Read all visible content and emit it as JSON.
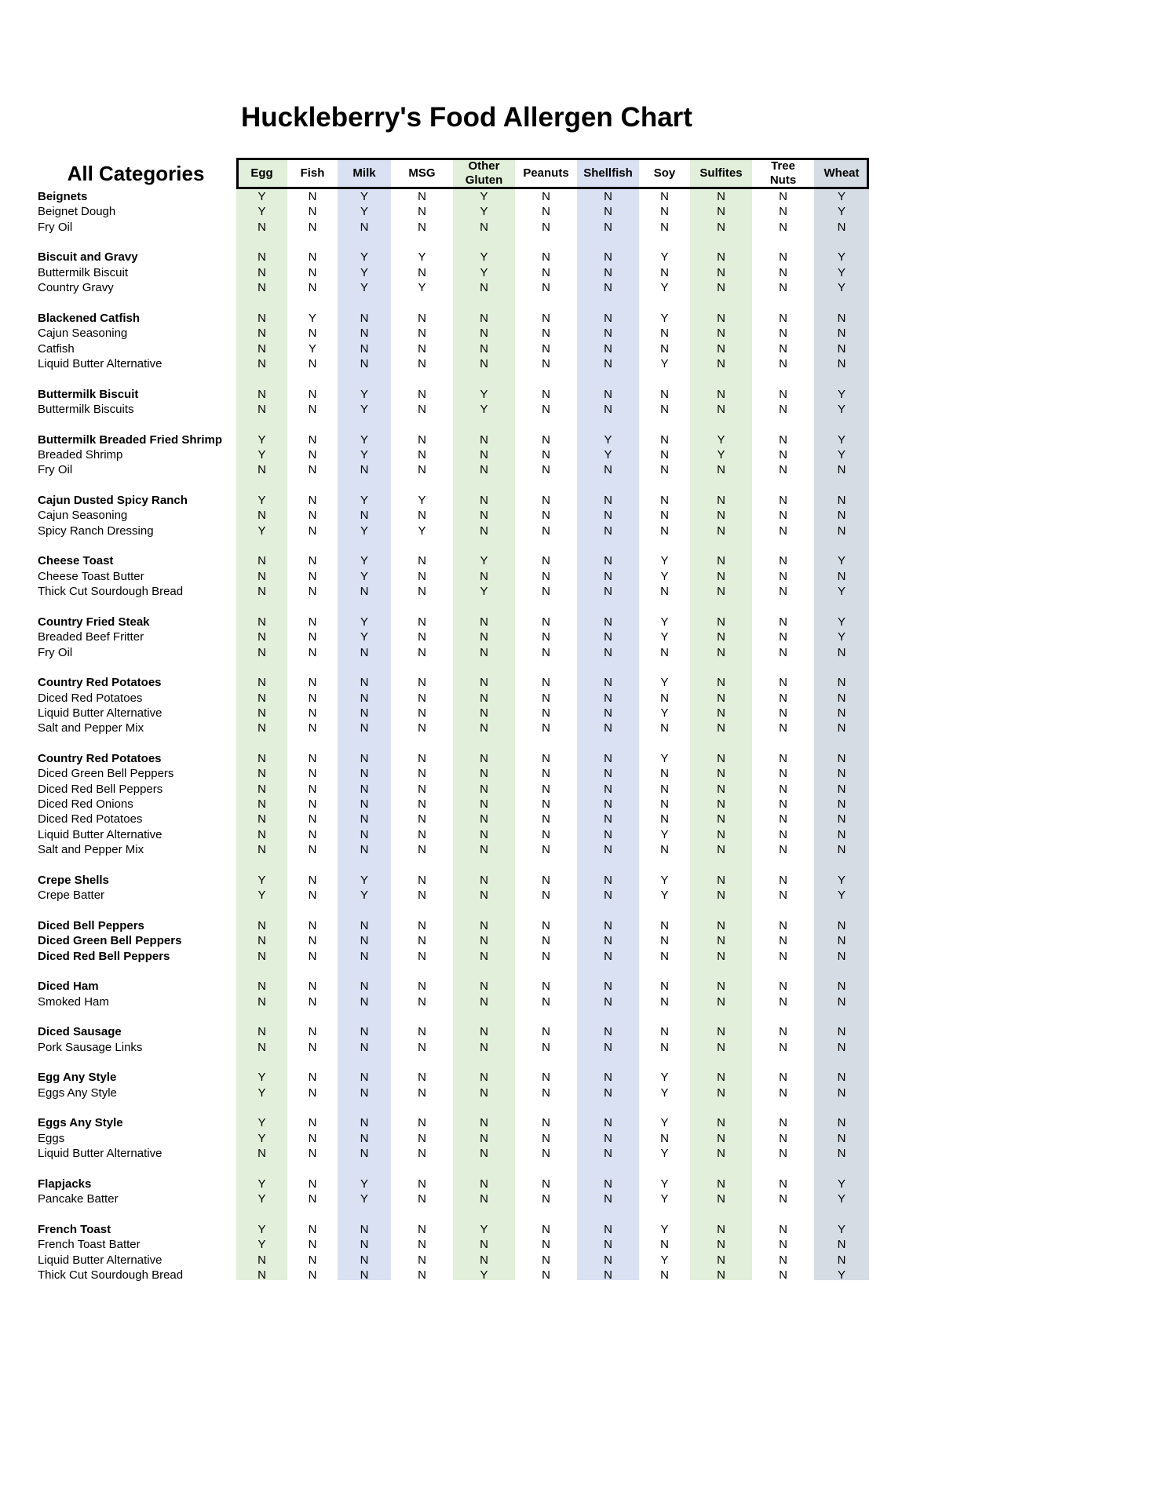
{
  "title": "Huckleberry's Food Allergen Chart",
  "table": {
    "category_header": "All Categories",
    "columns": [
      "Egg",
      "Fish",
      "Milk",
      "MSG",
      "Other Gluten",
      "Peanuts",
      "Shellfish",
      "Soy",
      "Sulfites",
      "Tree Nuts",
      "Wheat"
    ],
    "column_colors": [
      "#e2efda",
      "#ffffff",
      "#d9e1f2",
      "#ffffff",
      "#e2efda",
      "#ffffff",
      "#d9e1f2",
      "#ffffff",
      "#e2efda",
      "#ffffff",
      "#d6dce4"
    ],
    "groups": [
      {
        "name": "Beignets",
        "values": [
          "Y",
          "N",
          "Y",
          "N",
          "Y",
          "N",
          "N",
          "N",
          "N",
          "N",
          "Y"
        ],
        "items": [
          {
            "name": "Beignet Dough",
            "values": [
              "Y",
              "N",
              "Y",
              "N",
              "Y",
              "N",
              "N",
              "N",
              "N",
              "N",
              "Y"
            ]
          },
          {
            "name": "Fry Oil",
            "values": [
              "N",
              "N",
              "N",
              "N",
              "N",
              "N",
              "N",
              "N",
              "N",
              "N",
              "N"
            ]
          }
        ]
      },
      {
        "name": "Biscuit and Gravy",
        "values": [
          "N",
          "N",
          "Y",
          "Y",
          "Y",
          "N",
          "N",
          "Y",
          "N",
          "N",
          "Y"
        ],
        "items": [
          {
            "name": "Buttermilk Biscuit",
            "values": [
              "N",
              "N",
              "Y",
              "N",
              "Y",
              "N",
              "N",
              "N",
              "N",
              "N",
              "Y"
            ]
          },
          {
            "name": "Country Gravy",
            "values": [
              "N",
              "N",
              "Y",
              "Y",
              "N",
              "N",
              "N",
              "Y",
              "N",
              "N",
              "Y"
            ]
          }
        ]
      },
      {
        "name": "Blackened Catfish",
        "values": [
          "N",
          "Y",
          "N",
          "N",
          "N",
          "N",
          "N",
          "Y",
          "N",
          "N",
          "N"
        ],
        "items": [
          {
            "name": "Cajun Seasoning",
            "values": [
              "N",
              "N",
              "N",
              "N",
              "N",
              "N",
              "N",
              "N",
              "N",
              "N",
              "N"
            ]
          },
          {
            "name": "Catfish",
            "values": [
              "N",
              "Y",
              "N",
              "N",
              "N",
              "N",
              "N",
              "N",
              "N",
              "N",
              "N"
            ]
          },
          {
            "name": "Liquid Butter Alternative",
            "values": [
              "N",
              "N",
              "N",
              "N",
              "N",
              "N",
              "N",
              "Y",
              "N",
              "N",
              "N"
            ]
          }
        ]
      },
      {
        "name": "Buttermilk Biscuit",
        "values": [
          "N",
          "N",
          "Y",
          "N",
          "Y",
          "N",
          "N",
          "N",
          "N",
          "N",
          "Y"
        ],
        "items": [
          {
            "name": "Buttermilk Biscuits",
            "values": [
              "N",
              "N",
              "Y",
              "N",
              "Y",
              "N",
              "N",
              "N",
              "N",
              "N",
              "Y"
            ]
          }
        ]
      },
      {
        "name": "Buttermilk Breaded Fried Shrimp",
        "values": [
          "Y",
          "N",
          "Y",
          "N",
          "N",
          "N",
          "Y",
          "N",
          "Y",
          "N",
          "Y"
        ],
        "items": [
          {
            "name": "Breaded Shrimp",
            "values": [
              "Y",
              "N",
              "Y",
              "N",
              "N",
              "N",
              "Y",
              "N",
              "Y",
              "N",
              "Y"
            ]
          },
          {
            "name": "Fry Oil",
            "values": [
              "N",
              "N",
              "N",
              "N",
              "N",
              "N",
              "N",
              "N",
              "N",
              "N",
              "N"
            ]
          }
        ]
      },
      {
        "name": "Cajun Dusted Spicy Ranch",
        "values": [
          "Y",
          "N",
          "Y",
          "Y",
          "N",
          "N",
          "N",
          "N",
          "N",
          "N",
          "N"
        ],
        "items": [
          {
            "name": "Cajun Seasoning",
            "values": [
              "N",
              "N",
              "N",
              "N",
              "N",
              "N",
              "N",
              "N",
              "N",
              "N",
              "N"
            ]
          },
          {
            "name": "Spicy Ranch Dressing",
            "values": [
              "Y",
              "N",
              "Y",
              "Y",
              "N",
              "N",
              "N",
              "N",
              "N",
              "N",
              "N"
            ]
          }
        ]
      },
      {
        "name": "Cheese Toast",
        "values": [
          "N",
          "N",
          "Y",
          "N",
          "Y",
          "N",
          "N",
          "Y",
          "N",
          "N",
          "Y"
        ],
        "items": [
          {
            "name": "Cheese Toast Butter",
            "values": [
              "N",
              "N",
              "Y",
              "N",
              "N",
              "N",
              "N",
              "Y",
              "N",
              "N",
              "N"
            ]
          },
          {
            "name": "Thick Cut Sourdough Bread",
            "values": [
              "N",
              "N",
              "N",
              "N",
              "Y",
              "N",
              "N",
              "N",
              "N",
              "N",
              "Y"
            ]
          }
        ]
      },
      {
        "name": "Country Fried Steak",
        "values": [
          "N",
          "N",
          "Y",
          "N",
          "N",
          "N",
          "N",
          "Y",
          "N",
          "N",
          "Y"
        ],
        "items": [
          {
            "name": "Breaded Beef Fritter",
            "values": [
              "N",
              "N",
              "Y",
              "N",
              "N",
              "N",
              "N",
              "Y",
              "N",
              "N",
              "Y"
            ]
          },
          {
            "name": "Fry Oil",
            "values": [
              "N",
              "N",
              "N",
              "N",
              "N",
              "N",
              "N",
              "N",
              "N",
              "N",
              "N"
            ]
          }
        ]
      },
      {
        "name": "Country Red Potatoes",
        "values": [
          "N",
          "N",
          "N",
          "N",
          "N",
          "N",
          "N",
          "Y",
          "N",
          "N",
          "N"
        ],
        "items": [
          {
            "name": "Diced Red Potatoes",
            "values": [
              "N",
              "N",
              "N",
              "N",
              "N",
              "N",
              "N",
              "N",
              "N",
              "N",
              "N"
            ]
          },
          {
            "name": "Liquid Butter Alternative",
            "values": [
              "N",
              "N",
              "N",
              "N",
              "N",
              "N",
              "N",
              "Y",
              "N",
              "N",
              "N"
            ]
          },
          {
            "name": "Salt and Pepper Mix",
            "values": [
              "N",
              "N",
              "N",
              "N",
              "N",
              "N",
              "N",
              "N",
              "N",
              "N",
              "N"
            ]
          }
        ]
      },
      {
        "name": "Country Red Potatoes",
        "values": [
          "N",
          "N",
          "N",
          "N",
          "N",
          "N",
          "N",
          "Y",
          "N",
          "N",
          "N"
        ],
        "items": [
          {
            "name": "Diced Green Bell Peppers",
            "values": [
              "N",
              "N",
              "N",
              "N",
              "N",
              "N",
              "N",
              "N",
              "N",
              "N",
              "N"
            ]
          },
          {
            "name": "Diced Red Bell Peppers",
            "values": [
              "N",
              "N",
              "N",
              "N",
              "N",
              "N",
              "N",
              "N",
              "N",
              "N",
              "N"
            ]
          },
          {
            "name": "Diced Red Onions",
            "values": [
              "N",
              "N",
              "N",
              "N",
              "N",
              "N",
              "N",
              "N",
              "N",
              "N",
              "N"
            ]
          },
          {
            "name": "Diced Red Potatoes",
            "values": [
              "N",
              "N",
              "N",
              "N",
              "N",
              "N",
              "N",
              "N",
              "N",
              "N",
              "N"
            ]
          },
          {
            "name": "Liquid Butter Alternative",
            "values": [
              "N",
              "N",
              "N",
              "N",
              "N",
              "N",
              "N",
              "Y",
              "N",
              "N",
              "N"
            ]
          },
          {
            "name": "Salt and Pepper Mix",
            "values": [
              "N",
              "N",
              "N",
              "N",
              "N",
              "N",
              "N",
              "N",
              "N",
              "N",
              "N"
            ]
          }
        ]
      },
      {
        "name": "Crepe Shells",
        "values": [
          "Y",
          "N",
          "Y",
          "N",
          "N",
          "N",
          "N",
          "Y",
          "N",
          "N",
          "Y"
        ],
        "items": [
          {
            "name": "Crepe Batter",
            "values": [
              "Y",
              "N",
              "Y",
              "N",
              "N",
              "N",
              "N",
              "Y",
              "N",
              "N",
              "Y"
            ]
          }
        ]
      },
      {
        "name": "Diced Bell Peppers",
        "values": [
          "N",
          "N",
          "N",
          "N",
          "N",
          "N",
          "N",
          "N",
          "N",
          "N",
          "N"
        ],
        "items_bold": true,
        "items": [
          {
            "name": "Diced Green Bell Peppers",
            "values": [
              "N",
              "N",
              "N",
              "N",
              "N",
              "N",
              "N",
              "N",
              "N",
              "N",
              "N"
            ]
          },
          {
            "name": "Diced Red Bell Peppers",
            "values": [
              "N",
              "N",
              "N",
              "N",
              "N",
              "N",
              "N",
              "N",
              "N",
              "N",
              "N"
            ]
          }
        ]
      },
      {
        "name": "Diced Ham",
        "values": [
          "N",
          "N",
          "N",
          "N",
          "N",
          "N",
          "N",
          "N",
          "N",
          "N",
          "N"
        ],
        "items": [
          {
            "name": "Smoked Ham",
            "values": [
              "N",
              "N",
              "N",
              "N",
              "N",
              "N",
              "N",
              "N",
              "N",
              "N",
              "N"
            ]
          }
        ]
      },
      {
        "name": "Diced Sausage",
        "values": [
          "N",
          "N",
          "N",
          "N",
          "N",
          "N",
          "N",
          "N",
          "N",
          "N",
          "N"
        ],
        "items": [
          {
            "name": "Pork Sausage Links",
            "values": [
              "N",
              "N",
              "N",
              "N",
              "N",
              "N",
              "N",
              "N",
              "N",
              "N",
              "N"
            ]
          }
        ]
      },
      {
        "name": "Egg Any Style",
        "values": [
          "Y",
          "N",
          "N",
          "N",
          "N",
          "N",
          "N",
          "Y",
          "N",
          "N",
          "N"
        ],
        "items": [
          {
            "name": "Eggs Any Style",
            "values": [
              "Y",
              "N",
              "N",
              "N",
              "N",
              "N",
              "N",
              "Y",
              "N",
              "N",
              "N"
            ]
          }
        ]
      },
      {
        "name": "Eggs Any Style",
        "values": [
          "Y",
          "N",
          "N",
          "N",
          "N",
          "N",
          "N",
          "Y",
          "N",
          "N",
          "N"
        ],
        "items": [
          {
            "name": "Eggs",
            "values": [
              "Y",
              "N",
              "N",
              "N",
              "N",
              "N",
              "N",
              "N",
              "N",
              "N",
              "N"
            ]
          },
          {
            "name": "Liquid Butter Alternative",
            "values": [
              "N",
              "N",
              "N",
              "N",
              "N",
              "N",
              "N",
              "Y",
              "N",
              "N",
              "N"
            ]
          }
        ]
      },
      {
        "name": "Flapjacks",
        "values": [
          "Y",
          "N",
          "Y",
          "N",
          "N",
          "N",
          "N",
          "Y",
          "N",
          "N",
          "Y"
        ],
        "items": [
          {
            "name": "Pancake Batter",
            "values": [
              "Y",
              "N",
              "Y",
              "N",
              "N",
              "N",
              "N",
              "Y",
              "N",
              "N",
              "Y"
            ]
          }
        ]
      },
      {
        "name": "French Toast",
        "values": [
          "Y",
          "N",
          "N",
          "N",
          "Y",
          "N",
          "N",
          "Y",
          "N",
          "N",
          "Y"
        ],
        "items": [
          {
            "name": "French Toast Batter",
            "values": [
              "Y",
              "N",
              "N",
              "N",
              "N",
              "N",
              "N",
              "N",
              "N",
              "N",
              "N"
            ]
          },
          {
            "name": "Liquid Butter Alternative",
            "values": [
              "N",
              "N",
              "N",
              "N",
              "N",
              "N",
              "N",
              "Y",
              "N",
              "N",
              "N"
            ]
          },
          {
            "name": "Thick Cut Sourdough Bread",
            "values": [
              "N",
              "N",
              "N",
              "N",
              "Y",
              "N",
              "N",
              "N",
              "N",
              "N",
              "Y"
            ]
          }
        ]
      }
    ]
  }
}
